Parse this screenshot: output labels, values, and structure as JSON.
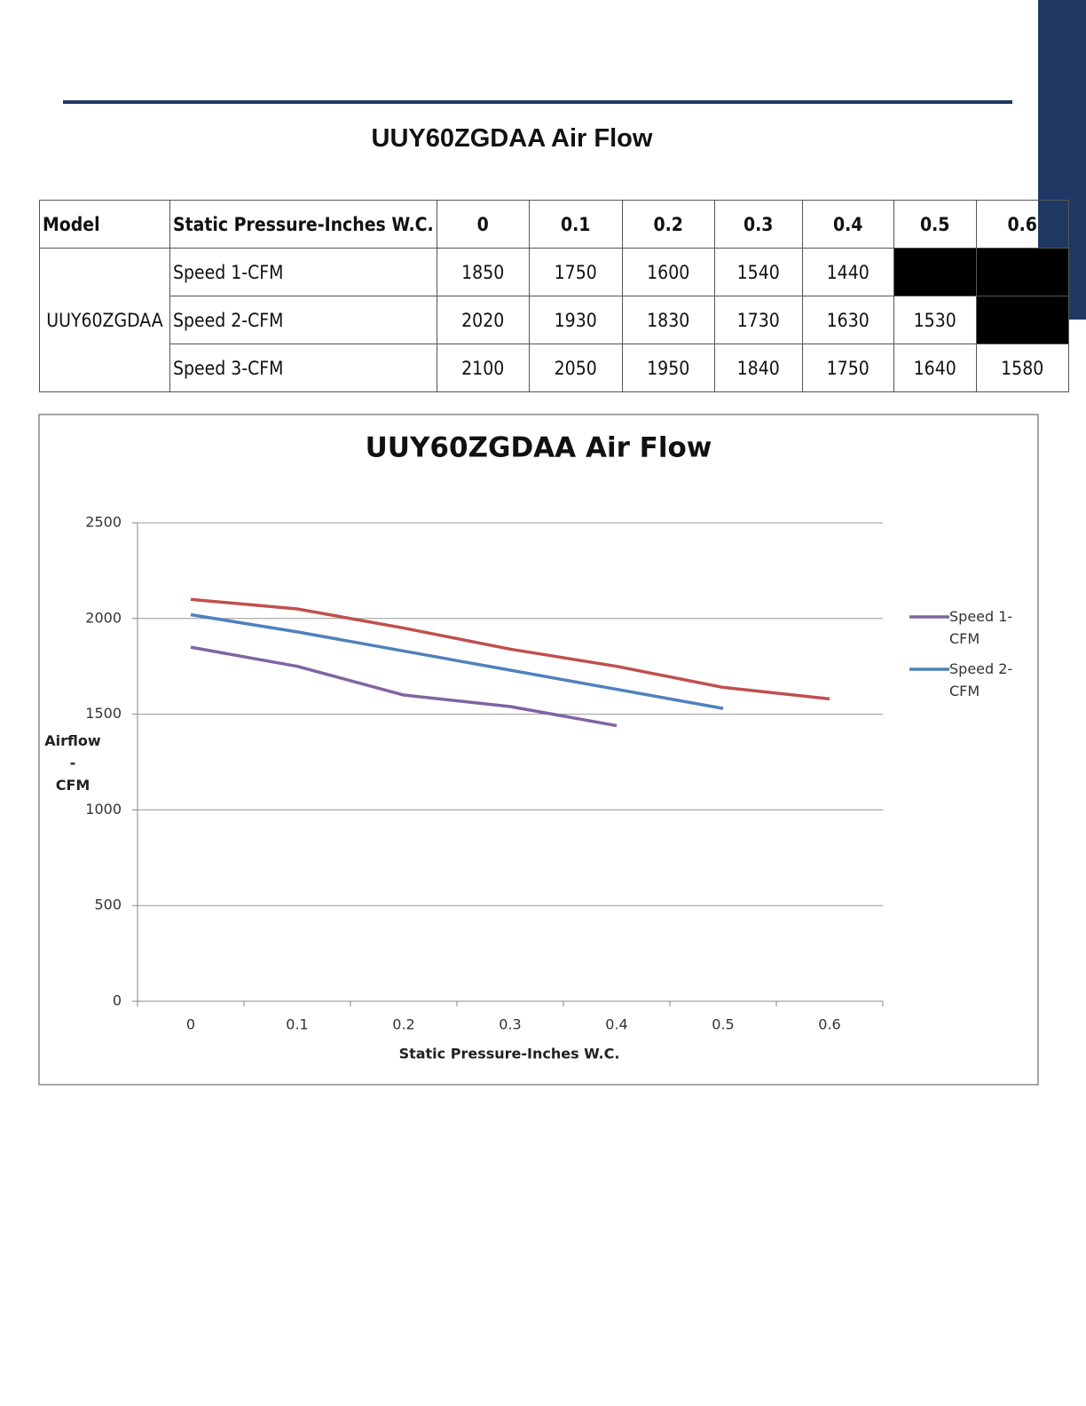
{
  "title": "UUY60ZGDAA Air Flow",
  "table": {
    "header": [
      "Model",
      "Static Pressure-Inches W.C.",
      "0",
      "0.1",
      "0.2",
      "0.3",
      "0.4",
      "0.5",
      "0.6"
    ],
    "model": "UUY60ZGDAA",
    "rows": [
      {
        "label": "Speed 1-CFM",
        "values": [
          1850,
          1750,
          1600,
          1540,
          1440
        ]
      },
      {
        "label": "Speed 2-CFM",
        "values": [
          2020,
          1930,
          1830,
          1730,
          1630,
          1530
        ]
      },
      {
        "label": "Speed 3-CFM",
        "values": [
          2100,
          2050,
          1950,
          1840,
          1750,
          1640,
          1580
        ]
      }
    ]
  },
  "chart_data": {
    "type": "line",
    "title": "UUY60ZGDAA Air Flow",
    "x_label": "Static Pressure-Inches W.C.",
    "y_label": "Airflow - CFM",
    "categories": [
      "0",
      "0.1",
      "0.2",
      "0.3",
      "0.4",
      "0.5",
      "0.6"
    ],
    "series": [
      {
        "name": "Speed 1-CFM",
        "color": "#8064a2",
        "values": [
          1850,
          1750,
          1600,
          1540,
          1440,
          null,
          null
        ]
      },
      {
        "name": "Speed 2-CFM",
        "color": "#4f81bd",
        "values": [
          2020,
          1930,
          1830,
          1730,
          1630,
          1530,
          null
        ]
      },
      {
        "color": "#c0504d",
        "values": [
          2100,
          2050,
          1950,
          1840,
          1750,
          1640,
          1580
        ]
      }
    ],
    "ylim": [
      0,
      2500
    ],
    "yticks": [
      0,
      500,
      1000,
      1500,
      2000,
      2500
    ],
    "grid": true,
    "legend": "right"
  }
}
